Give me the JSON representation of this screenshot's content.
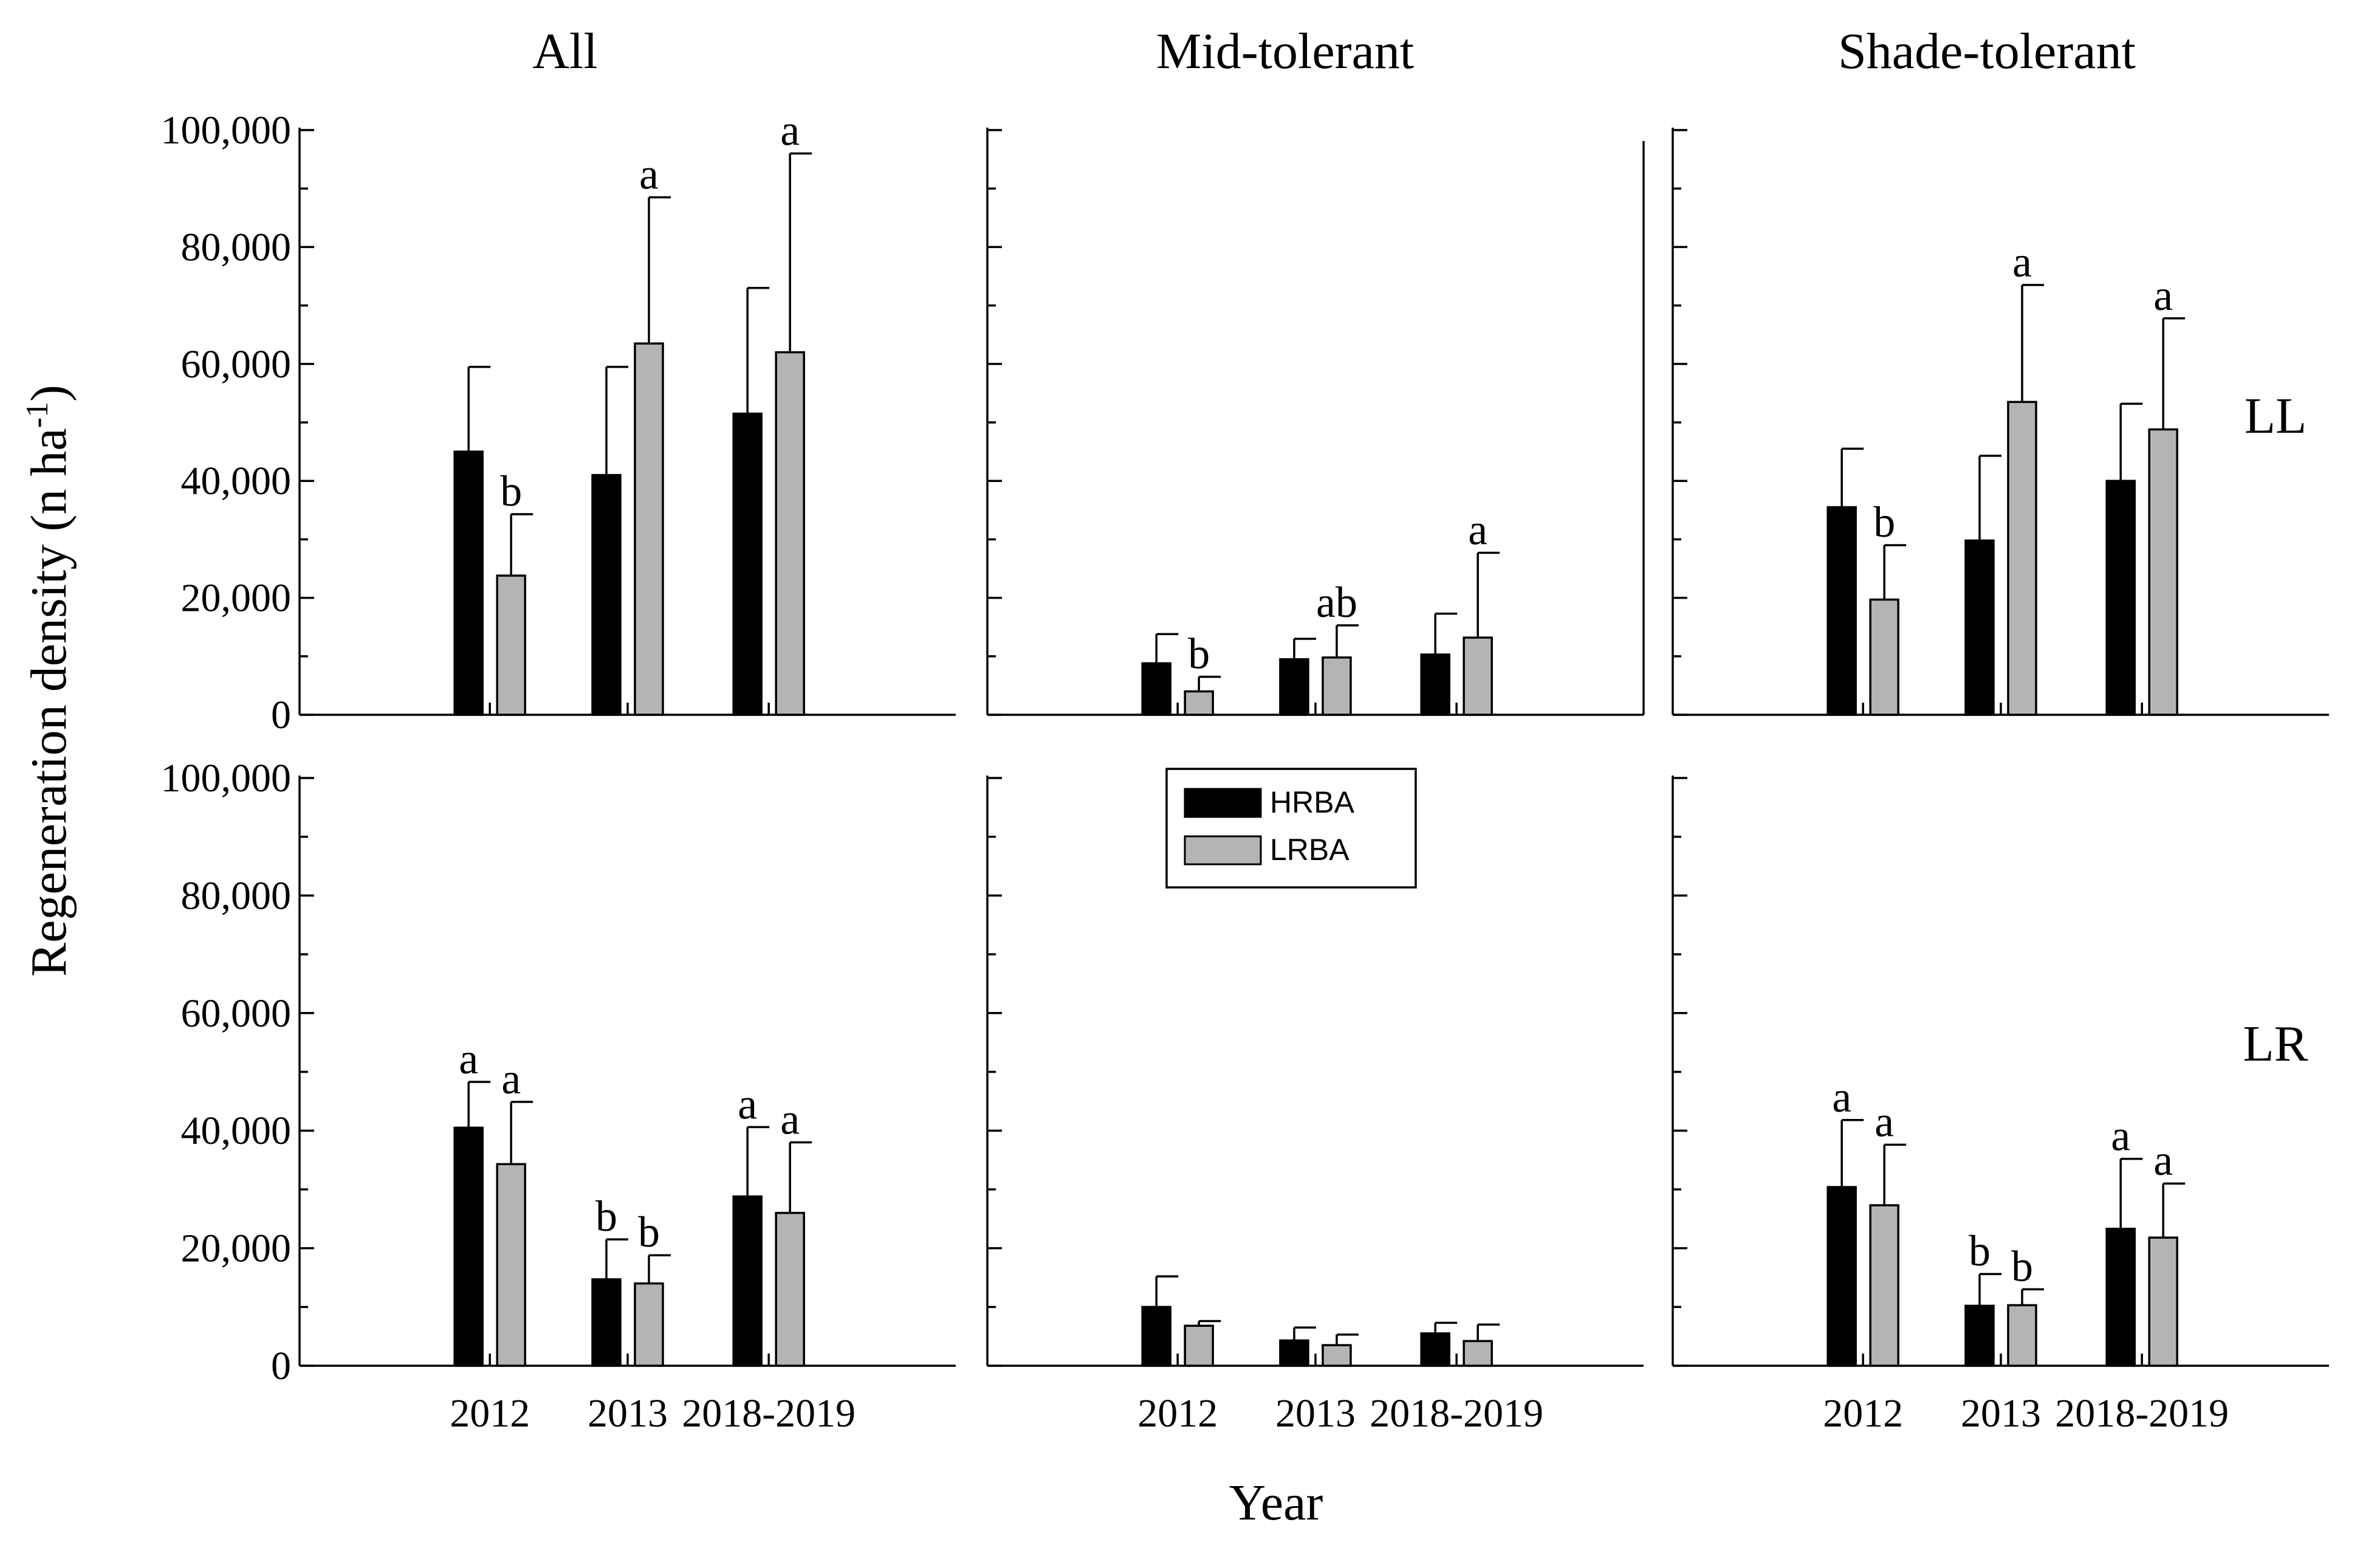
{
  "chart_data": {
    "type": "bar",
    "y_axis_label": "Regeneration density (n ha",
    "y_axis_label_sup": "-1",
    "y_axis_label_end": ")",
    "x_axis_label": "Year",
    "ylim": [
      0,
      100000
    ],
    "y_ticks": [
      0,
      20000,
      40000,
      60000,
      80000,
      100000
    ],
    "y_tick_labels": [
      "0",
      "20,000",
      "40,000",
      "60,000",
      "80,000",
      "100,000"
    ],
    "categories": [
      "2012",
      "2013",
      "2018-2019"
    ],
    "row_labels": [
      "LL",
      "LR"
    ],
    "column_titles": [
      "All",
      "Mid-tolerant",
      "Shade-tolerant"
    ],
    "legend": [
      {
        "name": "HRBA",
        "color": "#000000"
      },
      {
        "name": "LRBA",
        "color": "#b4b4b4"
      }
    ],
    "panels": [
      {
        "row": "LL",
        "column": "All",
        "series": [
          {
            "name": "HRBA",
            "values": [
              45000,
              41000,
              51500
            ],
            "errors": [
              14500,
              18500,
              21500
            ],
            "labels": [
              "",
              "",
              ""
            ]
          },
          {
            "name": "LRBA",
            "values": [
              23800,
              63500,
              62000
            ],
            "errors": [
              10500,
              25000,
              34000
            ],
            "labels": [
              "b",
              "a",
              "a"
            ]
          }
        ]
      },
      {
        "row": "LL",
        "column": "Mid-tolerant",
        "series": [
          {
            "name": "HRBA",
            "values": [
              8800,
              9500,
              10300
            ],
            "errors": [
              5000,
              3500,
              7000
            ],
            "labels": [
              "",
              "",
              ""
            ]
          },
          {
            "name": "LRBA",
            "values": [
              4000,
              9800,
              13200
            ],
            "errors": [
              2500,
              5500,
              14500
            ],
            "labels": [
              "b",
              "ab",
              "a"
            ]
          }
        ]
      },
      {
        "row": "LL",
        "column": "Shade-tolerant",
        "series": [
          {
            "name": "HRBA",
            "values": [
              35500,
              29800,
              40000
            ],
            "errors": [
              10000,
              14500,
              13200
            ],
            "labels": [
              "",
              "",
              ""
            ]
          },
          {
            "name": "LRBA",
            "values": [
              19700,
              53500,
              48800
            ],
            "errors": [
              9300,
              20000,
              19000
            ],
            "labels": [
              "b",
              "a",
              "a"
            ]
          }
        ]
      },
      {
        "row": "LR",
        "column": "All",
        "series": [
          {
            "name": "HRBA",
            "values": [
              40500,
              14700,
              28800
            ],
            "errors": [
              7800,
              6800,
              11800
            ],
            "labels": [
              "a",
              "b",
              "a"
            ]
          },
          {
            "name": "LRBA",
            "values": [
              34300,
              14000,
              26000
            ],
            "errors": [
              10600,
              4800,
              12000
            ],
            "labels": [
              "a",
              "b",
              "a"
            ]
          }
        ]
      },
      {
        "row": "LR",
        "column": "Mid-tolerant",
        "series": [
          {
            "name": "HRBA",
            "values": [
              10000,
              4300,
              5500
            ],
            "errors": [
              5200,
              2200,
              1800
            ],
            "labels": [
              "",
              "",
              ""
            ]
          },
          {
            "name": "LRBA",
            "values": [
              6800,
              3500,
              4200
            ],
            "errors": [
              800,
              1800,
              2800
            ],
            "labels": [
              "",
              "",
              ""
            ]
          }
        ]
      },
      {
        "row": "LR",
        "column": "Shade-tolerant",
        "series": [
          {
            "name": "HRBA",
            "values": [
              30400,
              10200,
              23300
            ],
            "errors": [
              11400,
              5400,
              11900
            ],
            "labels": [
              "a",
              "b",
              "a"
            ]
          },
          {
            "name": "LRBA",
            "values": [
              27300,
              10300,
              21800
            ],
            "errors": [
              10300,
              2700,
              9200
            ],
            "labels": [
              "a",
              "b",
              "a"
            ]
          }
        ]
      }
    ]
  }
}
